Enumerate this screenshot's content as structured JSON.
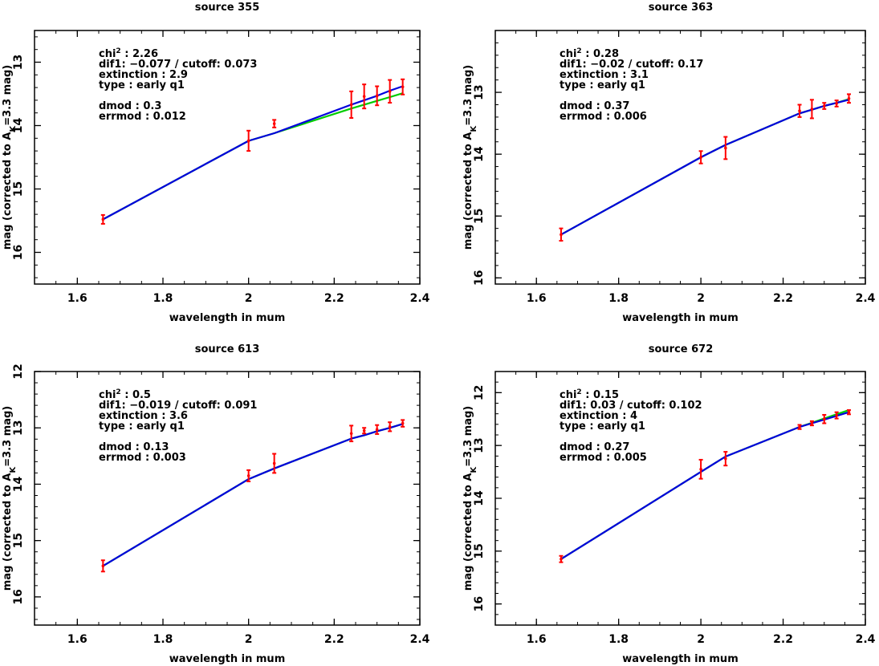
{
  "chart_data": [
    {
      "type": "line",
      "title": "source 355",
      "xlabel": "wavelength in mum",
      "ylabel_main": "mag (corrected to A",
      "ylabel_sub": "K",
      "ylabel_end": "=3.3 mag)",
      "xlim": [
        1.5,
        2.4
      ],
      "ylim": [
        16.5,
        12.5
      ],
      "xticks": [
        "1.6",
        "1.8",
        "2",
        "2.2",
        "2.4"
      ],
      "yticks": [
        "13",
        "14",
        "15",
        "16"
      ],
      "annotations": {
        "chi_base": "chi",
        "chi_exp": "2",
        "chi_val": " : 2.26",
        "dif": "dif1: −0.077 / cutoff: 0.073",
        "extinction": "extinction : 2.9",
        "type": "type : early q1",
        "dmod": "dmod : 0.3",
        "errmod": "errmod : 0.012"
      },
      "points": [
        {
          "x": 1.66,
          "y": 15.48,
          "err": 0.07
        },
        {
          "x": 2.0,
          "y": 14.24,
          "err": 0.16
        },
        {
          "x": 2.06,
          "y": 13.97,
          "err": 0.06
        },
        {
          "x": 2.24,
          "y": 13.67,
          "err": 0.21
        },
        {
          "x": 2.27,
          "y": 13.54,
          "err": 0.19
        },
        {
          "x": 2.3,
          "y": 13.53,
          "err": 0.15
        },
        {
          "x": 2.33,
          "y": 13.46,
          "err": 0.18
        },
        {
          "x": 2.36,
          "y": 13.39,
          "err": 0.12
        }
      ],
      "series": [
        {
          "color": "#00cc00",
          "x": [
            1.66,
            2.0,
            2.06,
            2.24,
            2.27,
            2.3,
            2.33,
            2.36
          ],
          "y": [
            15.48,
            14.24,
            14.12,
            13.73,
            13.67,
            13.61,
            13.55,
            13.49
          ]
        },
        {
          "color": "#0000dd",
          "x": [
            1.66,
            2.0,
            2.06,
            2.24,
            2.27,
            2.3,
            2.33,
            2.36
          ],
          "y": [
            15.48,
            14.24,
            14.12,
            13.67,
            13.6,
            13.53,
            13.45,
            13.38
          ]
        }
      ]
    },
    {
      "type": "line",
      "title": "source 363",
      "xlabel": "wavelength in mum",
      "ylabel_main": "mag (corrected to A",
      "ylabel_sub": "K",
      "ylabel_end": "=3.3 mag)",
      "xlim": [
        1.5,
        2.4
      ],
      "ylim": [
        16.1,
        12.0
      ],
      "xticks": [
        "1.6",
        "1.8",
        "2",
        "2.2",
        "2.4"
      ],
      "yticks": [
        "13",
        "14",
        "15",
        "16"
      ],
      "annotations": {
        "chi_base": "chi",
        "chi_exp": "2",
        "chi_val": " : 0.28",
        "dif": "dif1: −0.02 / cutoff: 0.17",
        "extinction": "extinction : 3.1",
        "type": "type : early q1",
        "dmod": "dmod : 0.37",
        "errmod": "errmod : 0.006"
      },
      "points": [
        {
          "x": 1.66,
          "y": 15.3,
          "err": 0.1
        },
        {
          "x": 2.0,
          "y": 14.05,
          "err": 0.1
        },
        {
          "x": 2.06,
          "y": 13.9,
          "err": 0.18
        },
        {
          "x": 2.24,
          "y": 13.3,
          "err": 0.1
        },
        {
          "x": 2.27,
          "y": 13.27,
          "err": 0.15
        },
        {
          "x": 2.3,
          "y": 13.22,
          "err": 0.05
        },
        {
          "x": 2.33,
          "y": 13.18,
          "err": 0.05
        },
        {
          "x": 2.36,
          "y": 13.1,
          "err": 0.07
        }
      ],
      "series": [
        {
          "color": "#00cc00",
          "x": [
            1.66,
            2.0,
            2.06,
            2.24,
            2.27,
            2.3,
            2.33,
            2.36
          ],
          "y": [
            15.3,
            14.05,
            13.85,
            13.34,
            13.28,
            13.22,
            13.17,
            13.11
          ]
        },
        {
          "color": "#0000dd",
          "x": [
            1.66,
            2.0,
            2.06,
            2.24,
            2.27,
            2.3,
            2.33,
            2.36
          ],
          "y": [
            15.3,
            14.05,
            13.85,
            13.34,
            13.28,
            13.22,
            13.17,
            13.12
          ]
        }
      ]
    },
    {
      "type": "line",
      "title": "source 613",
      "xlabel": "wavelength in mum",
      "ylabel_main": "mag (corrected to A",
      "ylabel_sub": "K",
      "ylabel_end": "=3.3 mag)",
      "xlim": [
        1.5,
        2.4
      ],
      "ylim": [
        16.5,
        12.0
      ],
      "xticks": [
        "1.6",
        "1.8",
        "2",
        "2.2",
        "2.4"
      ],
      "yticks": [
        "12",
        "13",
        "14",
        "15",
        "16"
      ],
      "annotations": {
        "chi_base": "chi",
        "chi_exp": "2",
        "chi_val": " : 0.5",
        "dif": "dif1: −0.019 / cutoff: 0.091",
        "extinction": "extinction : 3.6",
        "type": "type : early q1",
        "dmod": "dmod : 0.13",
        "errmod": "errmod : 0.003"
      },
      "points": [
        {
          "x": 1.66,
          "y": 15.45,
          "err": 0.1
        },
        {
          "x": 2.0,
          "y": 13.85,
          "err": 0.1
        },
        {
          "x": 2.06,
          "y": 13.63,
          "err": 0.17
        },
        {
          "x": 2.24,
          "y": 13.1,
          "err": 0.14
        },
        {
          "x": 2.27,
          "y": 13.05,
          "err": 0.05
        },
        {
          "x": 2.3,
          "y": 13.03,
          "err": 0.08
        },
        {
          "x": 2.33,
          "y": 12.98,
          "err": 0.08
        },
        {
          "x": 2.36,
          "y": 12.92,
          "err": 0.06
        }
      ],
      "series": [
        {
          "color": "#00cc00",
          "x": [
            1.66,
            2.0,
            2.06,
            2.24,
            2.27,
            2.3,
            2.33,
            2.36
          ],
          "y": [
            15.45,
            13.91,
            13.72,
            13.19,
            13.13,
            13.06,
            13.0,
            12.93
          ]
        },
        {
          "color": "#0000dd",
          "x": [
            1.66,
            2.0,
            2.06,
            2.24,
            2.27,
            2.3,
            2.33,
            2.36
          ],
          "y": [
            15.45,
            13.91,
            13.72,
            13.19,
            13.13,
            13.06,
            13.0,
            12.93
          ]
        }
      ]
    },
    {
      "type": "line",
      "title": "source 672",
      "xlabel": "wavelength in mum",
      "ylabel_main": "mag (corrected to A",
      "ylabel_sub": "K",
      "ylabel_end": "=3.3 mag)",
      "xlim": [
        1.5,
        2.4
      ],
      "ylim": [
        16.4,
        11.6
      ],
      "xticks": [
        "1.6",
        "1.8",
        "2",
        "2.2",
        "2.4"
      ],
      "yticks": [
        "12",
        "13",
        "14",
        "15",
        "16"
      ],
      "annotations": {
        "chi_base": "chi",
        "chi_exp": "2",
        "chi_val": " : 0.15",
        "dif": "dif1: 0.03 / cutoff: 0.102",
        "extinction": "extinction : 4",
        "type": "type : early q1",
        "dmod": "dmod : 0.27",
        "errmod": "errmod : 0.005"
      },
      "points": [
        {
          "x": 1.66,
          "y": 15.15,
          "err": 0.06
        },
        {
          "x": 2.0,
          "y": 13.45,
          "err": 0.18
        },
        {
          "x": 2.06,
          "y": 13.25,
          "err": 0.13
        },
        {
          "x": 2.24,
          "y": 12.65,
          "err": 0.04
        },
        {
          "x": 2.27,
          "y": 12.58,
          "err": 0.04
        },
        {
          "x": 2.3,
          "y": 12.5,
          "err": 0.08
        },
        {
          "x": 2.33,
          "y": 12.43,
          "err": 0.06
        },
        {
          "x": 2.36,
          "y": 12.37,
          "err": 0.04
        }
      ],
      "series": [
        {
          "color": "#00cc00",
          "x": [
            1.66,
            2.0,
            2.06,
            2.24,
            2.27,
            2.3,
            2.33,
            2.36
          ],
          "y": [
            15.15,
            13.5,
            13.21,
            12.65,
            12.57,
            12.49,
            12.41,
            12.33
          ]
        },
        {
          "color": "#0000dd",
          "x": [
            1.66,
            2.0,
            2.06,
            2.24,
            2.27,
            2.3,
            2.33,
            2.36
          ],
          "y": [
            15.15,
            13.5,
            13.21,
            12.65,
            12.58,
            12.51,
            12.44,
            12.37
          ]
        }
      ]
    }
  ],
  "colors": {
    "errorbar": "#ff0000",
    "axis": "#000000"
  }
}
